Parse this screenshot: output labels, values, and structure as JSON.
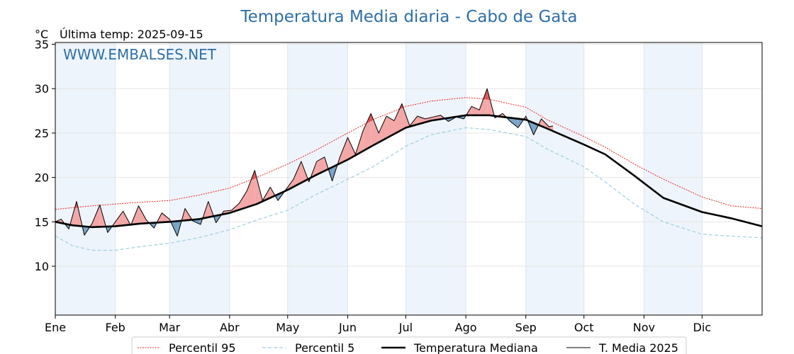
{
  "header": {
    "title": "Temperatura Media diaria - Cabo de Gata",
    "unit": "°C",
    "last_temp_label": "Última temp: 2025-09-15",
    "watermark": "WWW.EMBALSES.NET"
  },
  "colors": {
    "title": "#2e6fa7",
    "p95": "#e8262a",
    "p5": "#9fcfe0",
    "median": "#000000",
    "t2025": "#000000",
    "above_fill": "#f4a7a7",
    "above_fill_dark": "#e05555",
    "below_fill": "#7ba3c8",
    "band": "#eef4fb"
  },
  "chart_data": {
    "type": "line",
    "title": "Temperatura Media diaria - Cabo de Gata",
    "ylabel": "°C",
    "xlabel": "",
    "ylim": [
      4.5,
      35.2
    ],
    "xlim": [
      1,
      366
    ],
    "yticks": [
      10,
      15,
      20,
      25,
      30,
      35
    ],
    "month_ticks": [
      {
        "label": "Ene",
        "day": 1
      },
      {
        "label": "Feb",
        "day": 32
      },
      {
        "label": "Mar",
        "day": 60
      },
      {
        "label": "Abr",
        "day": 91
      },
      {
        "label": "May",
        "day": 121
      },
      {
        "label": "Jun",
        "day": 152
      },
      {
        "label": "Jul",
        "day": 182
      },
      {
        "label": "Ago",
        "day": 213
      },
      {
        "label": "Sep",
        "day": 244
      },
      {
        "label": "Oct",
        "day": 274
      },
      {
        "label": "Nov",
        "day": 305
      },
      {
        "label": "Dic",
        "day": 335
      }
    ],
    "grid": true,
    "legend_position": "bottom",
    "series": [
      {
        "name": "Percentil 95",
        "style": "dotted",
        "x": [
          1,
          10,
          20,
          32,
          45,
          60,
          75,
          91,
          105,
          121,
          135,
          152,
          165,
          182,
          195,
          213,
          225,
          244,
          255,
          274,
          285,
          300,
          315,
          335,
          350,
          366
        ],
        "y": [
          16.4,
          16.6,
          16.8,
          17.0,
          17.2,
          17.4,
          18.0,
          18.8,
          20.0,
          21.5,
          23.0,
          25.0,
          26.5,
          28.0,
          28.6,
          29.0,
          28.8,
          27.9,
          26.5,
          24.6,
          23.4,
          21.5,
          19.8,
          17.8,
          16.8,
          16.5
        ]
      },
      {
        "name": "Percentil 5",
        "style": "dashed",
        "x": [
          1,
          10,
          20,
          32,
          45,
          60,
          75,
          91,
          105,
          121,
          135,
          152,
          165,
          182,
          195,
          213,
          225,
          244,
          255,
          274,
          285,
          300,
          315,
          335,
          350,
          366
        ],
        "y": [
          13.4,
          12.3,
          11.8,
          11.8,
          12.2,
          12.6,
          13.2,
          14.1,
          15.2,
          16.3,
          18.0,
          19.8,
          21.2,
          23.5,
          24.8,
          25.6,
          25.4,
          24.6,
          23.2,
          21.2,
          19.5,
          17.0,
          15.0,
          13.6,
          13.4,
          13.2
        ]
      },
      {
        "name": "Temperatura Mediana",
        "style": "solid-thick",
        "x": [
          1,
          10,
          20,
          32,
          45,
          60,
          75,
          91,
          105,
          121,
          135,
          152,
          165,
          182,
          195,
          213,
          225,
          244,
          255,
          274,
          285,
          300,
          315,
          335,
          350,
          366
        ],
        "y": [
          15.0,
          14.6,
          14.4,
          14.5,
          14.8,
          15.0,
          15.3,
          16.0,
          17.0,
          18.6,
          20.2,
          22.0,
          23.6,
          25.6,
          26.4,
          27.0,
          27.0,
          26.5,
          25.5,
          23.7,
          22.6,
          20.2,
          17.7,
          16.1,
          15.4,
          14.5
        ]
      },
      {
        "name": "T. Media 2025",
        "style": "solid-thin",
        "x": [
          1,
          4,
          8,
          12,
          16,
          20,
          24,
          28,
          32,
          36,
          40,
          44,
          48,
          52,
          56,
          60,
          64,
          68,
          72,
          76,
          80,
          84,
          88,
          92,
          96,
          100,
          104,
          108,
          112,
          116,
          120,
          124,
          128,
          132,
          136,
          140,
          144,
          148,
          152,
          156,
          160,
          164,
          168,
          172,
          176,
          180,
          184,
          188,
          192,
          196,
          200,
          204,
          208,
          212,
          216,
          220,
          224,
          228,
          232,
          236,
          240,
          244,
          248,
          252,
          256,
          258
        ],
        "y": [
          15.0,
          15.3,
          14.2,
          17.3,
          13.5,
          14.8,
          16.9,
          13.8,
          15.0,
          16.2,
          14.6,
          16.8,
          15.2,
          14.3,
          16.0,
          15.3,
          13.4,
          16.5,
          15.1,
          14.7,
          17.3,
          14.9,
          16.2,
          16.3,
          17.1,
          18.5,
          20.8,
          17.4,
          18.9,
          17.4,
          18.6,
          19.8,
          21.8,
          19.5,
          21.8,
          22.3,
          19.6,
          22.3,
          24.5,
          22.6,
          25.3,
          27.2,
          25.0,
          26.9,
          26.4,
          28.3,
          25.8,
          26.9,
          26.6,
          26.8,
          27.0,
          26.3,
          26.8,
          26.6,
          28.0,
          27.6,
          30.0,
          26.7,
          27.2,
          26.3,
          25.6,
          26.9,
          24.8,
          26.6,
          25.7,
          25.8
        ]
      }
    ]
  },
  "legend": {
    "p95": "Percentil 95",
    "p5": "Percentil 5",
    "median": "Temperatura Mediana",
    "t2025": "T. Media 2025"
  }
}
